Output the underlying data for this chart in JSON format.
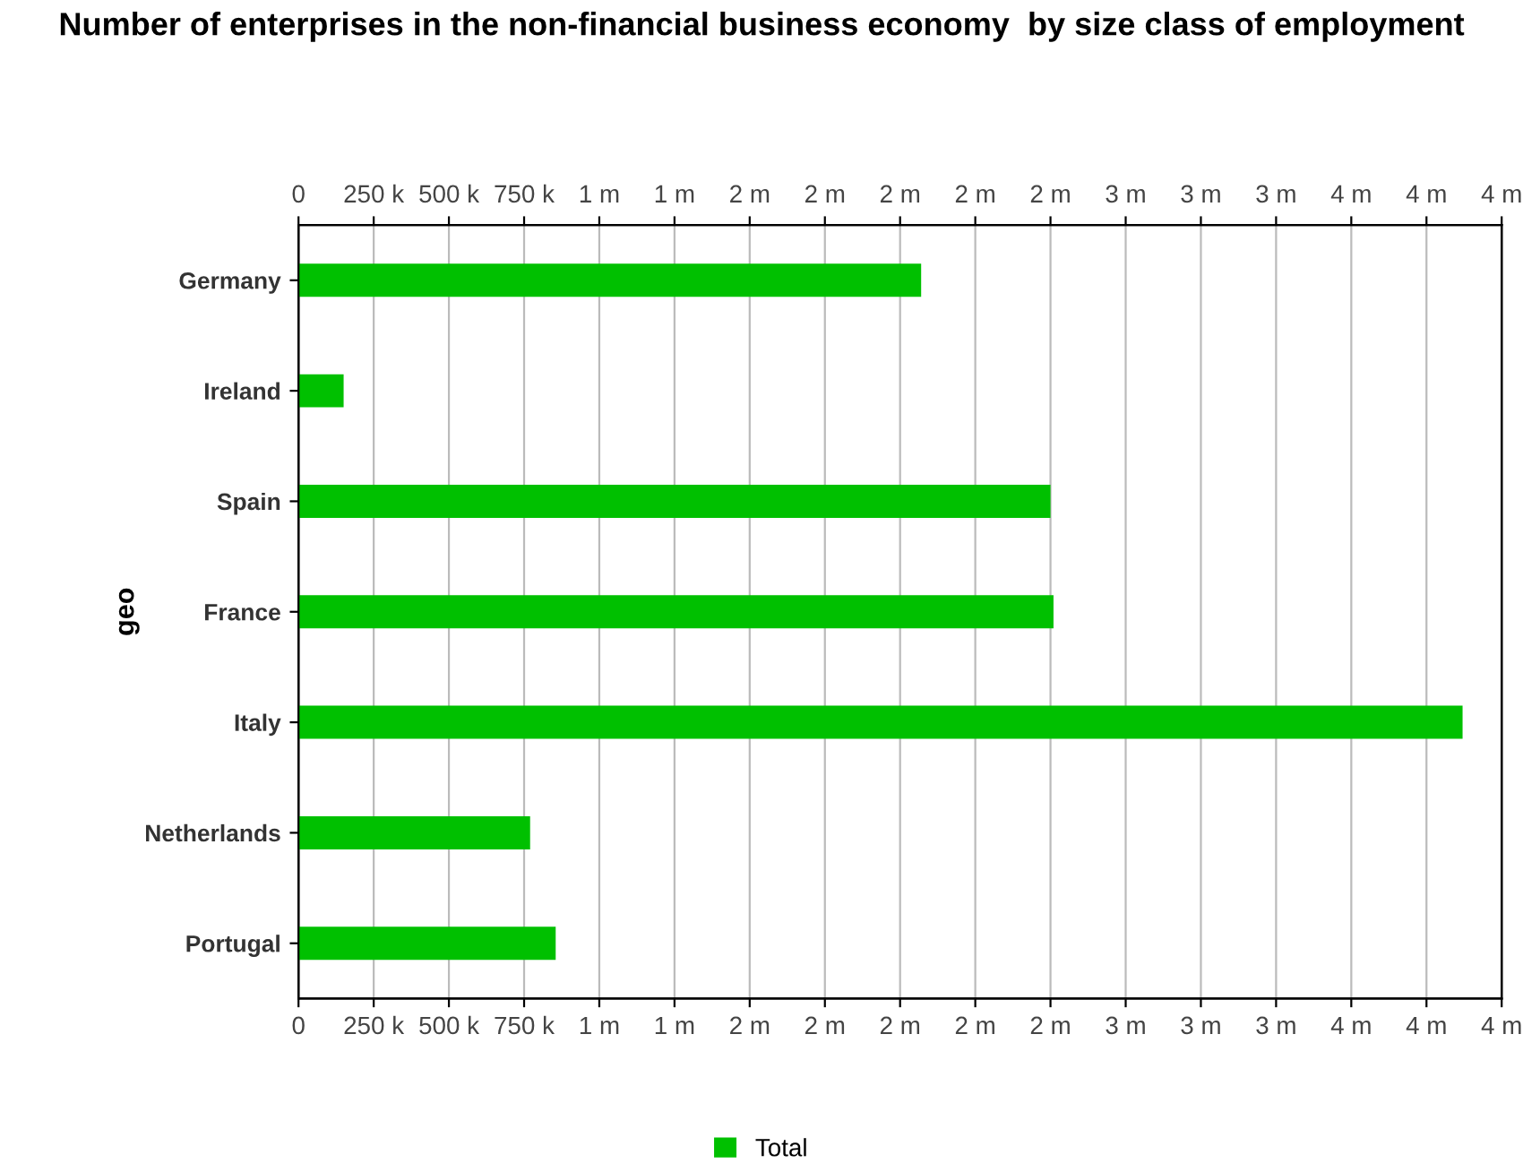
{
  "chart_data": {
    "type": "bar",
    "orientation": "horizontal",
    "title": "Number of enterprises in the non-financial business economy  by size class of employment",
    "ylabel": "geo",
    "categories": [
      "Germany",
      "Ireland",
      "Spain",
      "France",
      "Italy",
      "Netherlands",
      "Portugal"
    ],
    "series": [
      {
        "name": "Total",
        "color": "#00c000",
        "values": [
          2070000,
          150000,
          2500000,
          2510000,
          3870000,
          770000,
          855000
        ]
      }
    ],
    "xlim": [
      0,
      4000000
    ],
    "xticks": [
      0,
      {
        "value": 250000,
        "label": "250 k"
      },
      {
        "value": 500000,
        "label": "500 k"
      },
      {
        "value": 750000,
        "label": "750 k"
      },
      {
        "value": 1000000,
        "label": "1 m"
      },
      {
        "value": 1250000,
        "label": "1 m"
      },
      {
        "value": 1500000,
        "label": "2 m"
      },
      {
        "value": 1750000,
        "label": "2 m"
      },
      {
        "value": 2000000,
        "label": "2 m"
      },
      {
        "value": 2250000,
        "label": "2 m"
      },
      {
        "value": 2500000,
        "label": "2 m"
      },
      {
        "value": 2750000,
        "label": "3 m"
      },
      {
        "value": 3000000,
        "label": "3 m"
      },
      {
        "value": 3250000,
        "label": "3 m"
      },
      {
        "value": 3500000,
        "label": "4 m"
      },
      {
        "value": 3750000,
        "label": "4 m"
      },
      {
        "value": 4000000,
        "label": "4 m"
      }
    ],
    "x2lim": [
      0,
      4000000
    ],
    "x2ticks": [
      0,
      {
        "value": 250000,
        "label": "250 k"
      },
      {
        "value": 500000,
        "label": "500 k"
      },
      {
        "value": 750000,
        "label": "750 k"
      },
      {
        "value": 1000000,
        "label": "1 m"
      },
      {
        "value": 1250000,
        "label": "1 m"
      },
      {
        "value": 1500000,
        "label": "2 m"
      },
      {
        "value": 1750000,
        "label": "2 m"
      },
      {
        "value": 2000000,
        "label": "2 m"
      },
      {
        "value": 2250000,
        "label": "2 m"
      },
      {
        "value": 2500000,
        "label": "2 m"
      },
      {
        "value": 2750000,
        "label": "3 m"
      },
      {
        "value": 3000000,
        "label": "3 m"
      },
      {
        "value": 3250000,
        "label": "3 m"
      },
      {
        "value": 3500000,
        "label": "4 m"
      },
      {
        "value": 3750000,
        "label": "4 m"
      },
      {
        "value": 4000000,
        "label": "4 m"
      }
    ],
    "grid": "x",
    "legend": "bottom"
  }
}
